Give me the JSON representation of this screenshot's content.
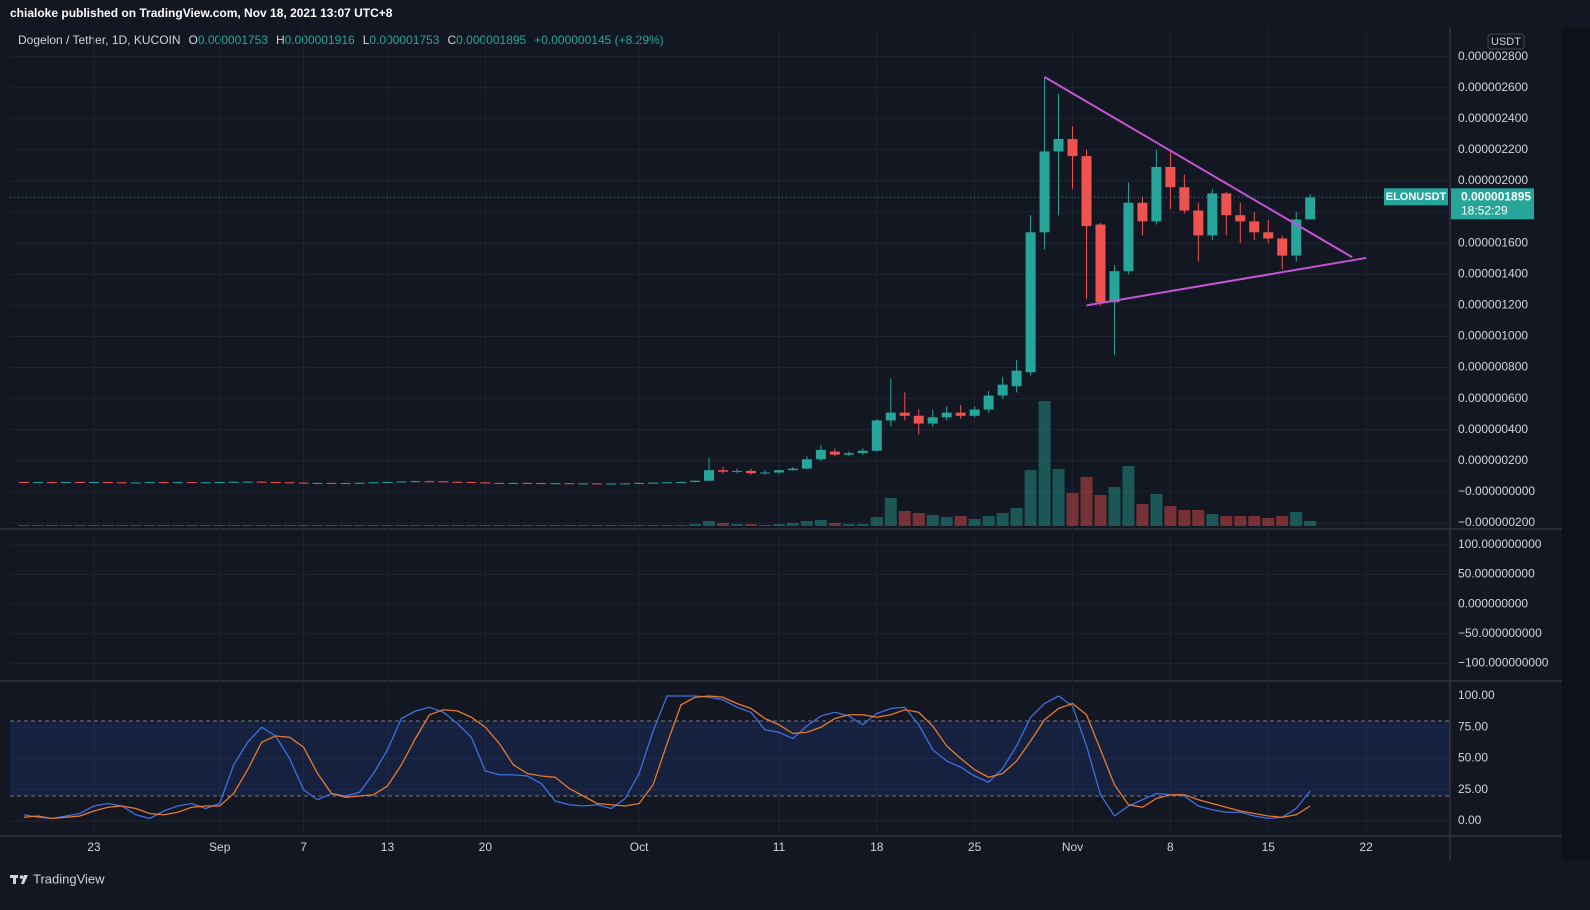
{
  "header": {
    "publisher": "chialoke published on TradingView.com, Nov 18, 2021 13:07 UTC+8"
  },
  "footer": {
    "brand": "TradingView"
  },
  "chart_data": {
    "type": "candlestick",
    "legend": {
      "symbol": "Dogelon / Tether, 1D, KUCOIN",
      "o_label": "O",
      "o": "0.000001753",
      "h_label": "H",
      "h": "0.000001916",
      "l_label": "L",
      "l": "0.000001753",
      "c_label": "C",
      "c": "0.000001895",
      "change": "+0.000000145 (+8.29%)"
    },
    "currency": "USDT",
    "up_color": "#26a69a",
    "down_color": "#ef5350",
    "xlim": [
      "08-17",
      "11-28"
    ],
    "xticks": [
      {
        "value": "08-23",
        "label": "23"
      },
      {
        "value": "09-01",
        "label": "Sep"
      },
      {
        "value": "09-07",
        "label": "7"
      },
      {
        "value": "09-13",
        "label": "13"
      },
      {
        "value": "09-20",
        "label": "20"
      },
      {
        "value": "10-01",
        "label": "Oct"
      },
      {
        "value": "10-11",
        "label": "11"
      },
      {
        "value": "10-18",
        "label": "18"
      },
      {
        "value": "10-25",
        "label": "25"
      },
      {
        "value": "11-01",
        "label": "Nov"
      },
      {
        "value": "11-08",
        "label": "8"
      },
      {
        "value": "11-15",
        "label": "15"
      },
      {
        "value": "11-22",
        "label": "22"
      }
    ],
    "ylim": [
      -2.32e-07,
      2.984e-06
    ],
    "yticks": [
      {
        "value": 2.8e-06,
        "label": "0.000002800"
      },
      {
        "value": 2.6e-06,
        "label": "0.000002600"
      },
      {
        "value": 2.4e-06,
        "label": "0.000002400"
      },
      {
        "value": 2.2e-06,
        "label": "0.000002200"
      },
      {
        "value": 2e-06,
        "label": "0.000002000"
      },
      {
        "value": 1.8e-06,
        "label": "0.000001800"
      },
      {
        "value": 1.6e-06,
        "label": "0.000001600"
      },
      {
        "value": 1.4e-06,
        "label": "0.000001400"
      },
      {
        "value": 1.2e-06,
        "label": "0.000001200"
      },
      {
        "value": 1e-06,
        "label": "0.000001000"
      },
      {
        "value": 8e-07,
        "label": "0.000000800"
      },
      {
        "value": 6e-07,
        "label": "0.000000600"
      },
      {
        "value": 4e-07,
        "label": "0.000000400"
      },
      {
        "value": 2e-07,
        "label": "0.000000200"
      },
      {
        "value": 0,
        "label": "−0.000000000"
      },
      {
        "value": -2e-07,
        "label": "−0.000000200"
      }
    ],
    "grid": true,
    "x": [
      "08-18",
      "08-19",
      "08-20",
      "08-21",
      "08-22",
      "08-23",
      "08-24",
      "08-25",
      "08-26",
      "08-27",
      "08-28",
      "08-29",
      "08-30",
      "08-31",
      "09-01",
      "09-02",
      "09-03",
      "09-04",
      "09-05",
      "09-06",
      "09-07",
      "09-08",
      "09-09",
      "09-10",
      "09-11",
      "09-12",
      "09-13",
      "09-14",
      "09-15",
      "09-16",
      "09-17",
      "09-18",
      "09-19",
      "09-20",
      "09-21",
      "09-22",
      "09-23",
      "09-24",
      "09-25",
      "09-26",
      "09-27",
      "09-28",
      "09-29",
      "09-30",
      "10-01",
      "10-02",
      "10-03",
      "10-04",
      "10-05",
      "10-06",
      "10-07",
      "10-08",
      "10-09",
      "10-10",
      "10-11",
      "10-12",
      "10-13",
      "10-14",
      "10-15",
      "10-16",
      "10-17",
      "10-18",
      "10-19",
      "10-20",
      "10-21",
      "10-22",
      "10-23",
      "10-24",
      "10-25",
      "10-26",
      "10-27",
      "10-28",
      "10-29",
      "10-30",
      "10-31",
      "11-01",
      "11-02",
      "11-03",
      "11-04",
      "11-05",
      "11-06",
      "11-07",
      "11-08",
      "11-09",
      "11-10",
      "11-11",
      "11-12",
      "11-13",
      "11-14",
      "11-15",
      "11-16",
      "11-17",
      "11-18"
    ],
    "ohlc": [
      [
        6.4e-08,
        6.6e-08,
        6.1e-08,
        6.2e-08
      ],
      [
        6.2e-08,
        6.5e-08,
        6e-08,
        6.3e-08
      ],
      [
        6.3e-08,
        6.6e-08,
        6.1e-08,
        6.2e-08
      ],
      [
        6.2e-08,
        6.5e-08,
        6e-08,
        6.4e-08
      ],
      [
        6.4e-08,
        6.6e-08,
        6.2e-08,
        6.3e-08
      ],
      [
        6.3e-08,
        6.5e-08,
        6.1e-08,
        6.4e-08
      ],
      [
        6.4e-08,
        6.6e-08,
        6.2e-08,
        6.2e-08
      ],
      [
        6.2e-08,
        6.4e-08,
        5.9e-08,
        6e-08
      ],
      [
        6e-08,
        6.3e-08,
        5.8e-08,
        6.1e-08
      ],
      [
        6.1e-08,
        6.4e-08,
        5.9e-08,
        6.3e-08
      ],
      [
        6.3e-08,
        6.6e-08,
        6.1e-08,
        6.2e-08
      ],
      [
        6.2e-08,
        6.4e-08,
        6e-08,
        6.3e-08
      ],
      [
        6.3e-08,
        6.5e-08,
        6e-08,
        6.1e-08
      ],
      [
        6.1e-08,
        6.4e-08,
        5.9e-08,
        6.2e-08
      ],
      [
        6.2e-08,
        6.5e-08,
        6e-08,
        6.4e-08
      ],
      [
        6.4e-08,
        6.8e-08,
        6.2e-08,
        6.5e-08
      ],
      [
        6.5e-08,
        6.9e-08,
        6.3e-08,
        6.6e-08
      ],
      [
        6.6e-08,
        7e-08,
        6.3e-08,
        6.4e-08
      ],
      [
        6.4e-08,
        6.6e-08,
        6.1e-08,
        6.2e-08
      ],
      [
        6.2e-08,
        6.4e-08,
        5.9e-08,
        6e-08
      ],
      [
        6e-08,
        6.2e-08,
        5.4e-08,
        5.6e-08
      ],
      [
        5.6e-08,
        5.9e-08,
        5.4e-08,
        5.8e-08
      ],
      [
        5.8e-08,
        6e-08,
        5.5e-08,
        5.6e-08
      ],
      [
        5.6e-08,
        5.9e-08,
        5.4e-08,
        5.7e-08
      ],
      [
        5.7e-08,
        6e-08,
        5.5e-08,
        5.9e-08
      ],
      [
        5.9e-08,
        6.3e-08,
        5.7e-08,
        6.2e-08
      ],
      [
        6.2e-08,
        6.6e-08,
        6e-08,
        6.4e-08
      ],
      [
        6.4e-08,
        6.9e-08,
        6.2e-08,
        6.7e-08
      ],
      [
        6.7e-08,
        7.2e-08,
        6.5e-08,
        6.9e-08
      ],
      [
        6.9e-08,
        7.3e-08,
        6.6e-08,
        6.8e-08
      ],
      [
        6.8e-08,
        7e-08,
        6.4e-08,
        6.5e-08
      ],
      [
        6.5e-08,
        6.8e-08,
        6.3e-08,
        6.4e-08
      ],
      [
        6.4e-08,
        6.6e-08,
        6e-08,
        6.1e-08
      ],
      [
        6.1e-08,
        6.3e-08,
        5.7e-08,
        5.8e-08
      ],
      [
        5.8e-08,
        6e-08,
        5.5e-08,
        5.7e-08
      ],
      [
        5.7e-08,
        6e-08,
        5.5e-08,
        5.8e-08
      ],
      [
        5.8e-08,
        6e-08,
        5.6e-08,
        5.7e-08
      ],
      [
        5.7e-08,
        5.9e-08,
        5.4e-08,
        5.5e-08
      ],
      [
        5.5e-08,
        5.8e-08,
        5.3e-08,
        5.6e-08
      ],
      [
        5.6e-08,
        5.8e-08,
        5.3e-08,
        5.4e-08
      ],
      [
        5.4e-08,
        5.7e-08,
        5.2e-08,
        5.5e-08
      ],
      [
        5.5e-08,
        5.7e-08,
        5.2e-08,
        5.3e-08
      ],
      [
        5.3e-08,
        5.6e-08,
        5.1e-08,
        5.4e-08
      ],
      [
        5.4e-08,
        5.7e-08,
        5.2e-08,
        5.5e-08
      ],
      [
        5.5e-08,
        5.9e-08,
        5.3e-08,
        5.8e-08
      ],
      [
        5.8e-08,
        6.2e-08,
        5.6e-08,
        6e-08
      ],
      [
        6e-08,
        6.4e-08,
        5.8e-08,
        6.2e-08
      ],
      [
        6.2e-08,
        6.6e-08,
        5.9e-08,
        6.4e-08
      ],
      [
        6.4e-08,
        7.5e-08,
        6.2e-08,
        7.2e-08
      ],
      [
        7.2e-08,
        2.2e-07,
        7e-08,
        1.4e-07
      ],
      [
        1.4e-07,
        1.6e-07,
        1.2e-07,
        1.3e-07
      ],
      [
        1.3e-07,
        1.5e-07,
        1.2e-07,
        1.35e-07
      ],
      [
        1.35e-07,
        1.5e-07,
        1.1e-07,
        1.2e-07
      ],
      [
        1.2e-07,
        1.4e-07,
        1.1e-07,
        1.25e-07
      ],
      [
        1.25e-07,
        1.45e-07,
        1.15e-07,
        1.4e-07
      ],
      [
        1.4e-07,
        1.6e-07,
        1.35e-07,
        1.5e-07
      ],
      [
        1.5e-07,
        2.3e-07,
        1.45e-07,
        2.1e-07
      ],
      [
        2.1e-07,
        3e-07,
        2e-07,
        2.7e-07
      ],
      [
        2.6e-07,
        2.8e-07,
        2.3e-07,
        2.4e-07
      ],
      [
        2.4e-07,
        2.6e-07,
        2.3e-07,
        2.5e-07
      ],
      [
        2.5e-07,
        2.8e-07,
        2.4e-07,
        2.65e-07
      ],
      [
        2.65e-07,
        4.7e-07,
        2.6e-07,
        4.6e-07
      ],
      [
        4.6e-07,
        7.3e-07,
        4.2e-07,
        5.1e-07
      ],
      [
        5.1e-07,
        6.4e-07,
        4.6e-07,
        4.9e-07
      ],
      [
        4.9e-07,
        5.3e-07,
        3.7e-07,
        4.4e-07
      ],
      [
        4.4e-07,
        5.3e-07,
        4.2e-07,
        4.8e-07
      ],
      [
        4.8e-07,
        5.5e-07,
        4.6e-07,
        5.1e-07
      ],
      [
        5.1e-07,
        5.6e-07,
        4.7e-07,
        4.9e-07
      ],
      [
        4.9e-07,
        5.5e-07,
        4.8e-07,
        5.3e-07
      ],
      [
        5.3e-07,
        6.5e-07,
        5.1e-07,
        6.2e-07
      ],
      [
        6.2e-07,
        7.4e-07,
        6e-07,
        6.9e-07
      ],
      [
        6.8e-07,
        8.5e-07,
        6.4e-07,
        7.8e-07
      ],
      [
        7.7e-07,
        1.78e-06,
        7.5e-07,
        1.67e-06
      ],
      [
        1.67e-06,
        2.67e-06,
        1.56e-06,
        2.19e-06
      ],
      [
        2.19e-06,
        2.56e-06,
        1.78e-06,
        2.27e-06
      ],
      [
        2.27e-06,
        2.35e-06,
        1.95e-06,
        2.16e-06
      ],
      [
        2.16e-06,
        2.2e-06,
        1.24e-06,
        1.71e-06
      ],
      [
        1.72e-06,
        1.73e-06,
        1.2e-06,
        1.22e-06
      ],
      [
        1.22e-06,
        1.46e-06,
        8.8e-07,
        1.42e-06
      ],
      [
        1.42e-06,
        1.99e-06,
        1.4e-06,
        1.86e-06
      ],
      [
        1.86e-06,
        1.9e-06,
        1.65e-06,
        1.74e-06
      ],
      [
        1.74e-06,
        2.2e-06,
        1.72e-06,
        2.09e-06
      ],
      [
        2.09e-06,
        2.2e-06,
        1.82e-06,
        1.96e-06
      ],
      [
        1.96e-06,
        2.04e-06,
        1.79e-06,
        1.81e-06
      ],
      [
        1.81e-06,
        1.86e-06,
        1.48e-06,
        1.65e-06
      ],
      [
        1.65e-06,
        1.95e-06,
        1.62e-06,
        1.92e-06
      ],
      [
        1.92e-06,
        1.93e-06,
        1.65e-06,
        1.78e-06
      ],
      [
        1.78e-06,
        1.86e-06,
        1.6e-06,
        1.74e-06
      ],
      [
        1.74e-06,
        1.8e-06,
        1.62e-06,
        1.67e-06
      ],
      [
        1.67e-06,
        1.75e-06,
        1.6e-06,
        1.63e-06
      ],
      [
        1.63e-06,
        1.65e-06,
        1.43e-06,
        1.52e-06
      ],
      [
        1.52e-06,
        1.8e-06,
        1.48e-06,
        1.753e-06
      ],
      [
        1.753e-06,
        1.916e-06,
        1.753e-06,
        1.895e-06
      ]
    ],
    "volume": [
      1,
      1,
      1,
      1,
      1,
      1,
      1,
      1,
      1,
      1,
      1,
      1,
      1,
      1,
      1,
      1,
      1,
      1,
      1,
      1,
      1,
      1,
      1,
      1,
      1,
      1,
      1,
      1,
      1,
      1,
      1,
      1,
      1,
      1,
      1,
      1,
      1,
      1,
      1,
      1,
      1,
      1,
      1,
      1,
      1,
      1,
      1,
      1,
      2,
      5,
      3,
      2,
      2,
      1,
      2,
      3,
      5,
      6,
      3,
      2,
      2,
      9,
      28,
      15,
      13,
      11,
      9,
      10,
      7,
      10,
      13,
      18,
      56,
      125,
      57,
      33,
      49,
      31,
      39,
      60,
      22,
      32,
      20,
      16,
      16,
      12,
      10,
      10,
      10,
      8,
      10,
      14,
      5
    ],
    "volume_ylim": [
      0,
      130
    ],
    "trendline_color": "#c455d6",
    "trendlines": [
      {
        "points": [
          [
            "10-30",
            2.669e-06
          ],
          [
            "11-21",
            1.51e-06
          ]
        ]
      },
      {
        "points": [
          [
            "11-02",
            1.2e-06
          ],
          [
            "11-22",
            1.505e-06
          ]
        ]
      }
    ],
    "last_price": {
      "symbol": "ELONUSDT",
      "price": "0.000001895",
      "countdown": "18:52:29"
    },
    "panes": [
      {
        "type": "empty",
        "ylim": [
          -128,
          125
        ],
        "yticks": [
          {
            "value": 100,
            "label": "100.000000000"
          },
          {
            "value": 50,
            "label": "50.000000000"
          },
          {
            "value": 0,
            "label": "0.000000000"
          },
          {
            "value": -50,
            "label": "−50.000000000"
          },
          {
            "value": -100,
            "label": "−100.000000000"
          }
        ]
      },
      {
        "type": "line",
        "ylim": [
          -11.2,
          111.2
        ],
        "yticks": [
          {
            "value": 100,
            "label": "100.00"
          },
          {
            "value": 75,
            "label": "75.00"
          },
          {
            "value": 50,
            "label": "50.00"
          },
          {
            "value": 25,
            "label": "25.00"
          },
          {
            "value": 0,
            "label": "0.00"
          }
        ],
        "bands": [
          80,
          20
        ],
        "series": [
          {
            "color": "#3f6fe0",
            "values": [
              5,
              3,
              2,
              4,
              6,
              12,
              14,
              12,
              5,
              2,
              8,
              12,
              14,
              10,
              14,
              45,
              63,
              75,
              68,
              50,
              25,
              17,
              22,
              20,
              23,
              38,
              57,
              82,
              88,
              91,
              87,
              78,
              67,
              40,
              37,
              37,
              36,
              30,
              16,
              13,
              12,
              13,
              10,
              18,
              38,
              72,
              100,
              100,
              100,
              99,
              97,
              91,
              87,
              73,
              71,
              66,
              76,
              84,
              87,
              84,
              77,
              86,
              90,
              91,
              77,
              57,
              48,
              43,
              36,
              31,
              42,
              60,
              83,
              94,
              100,
              92,
              60,
              21,
              4,
              12,
              17,
              22,
              21,
              20,
              12,
              9,
              7,
              7,
              4,
              2,
              3,
              10,
              24
            ]
          },
          {
            "color": "#e67a2e",
            "values": [
              3,
              4,
              2,
              3,
              4,
              8,
              11,
              12,
              10,
              6,
              5,
              7,
              11,
              12,
              12,
              22,
              41,
              63,
              68,
              67,
              59,
              38,
              22,
              19,
              20,
              21,
              28,
              45,
              66,
              85,
              89,
              88,
              83,
              75,
              62,
              45,
              38,
              36,
              35,
              26,
              20,
              14,
              13,
              12,
              14,
              29,
              62,
              93,
              99,
              100,
              99,
              94,
              90,
              82,
              77,
              70,
              71,
              75,
              82,
              85,
              85,
              83,
              85,
              89,
              87,
              76,
              60,
              50,
              41,
              35,
              38,
              48,
              64,
              81,
              90,
              94,
              85,
              57,
              29,
              13,
              11,
              18,
              21,
              21,
              17,
              14,
              11,
              8,
              6,
              4,
              3,
              5,
              12
            ]
          }
        ]
      }
    ]
  }
}
